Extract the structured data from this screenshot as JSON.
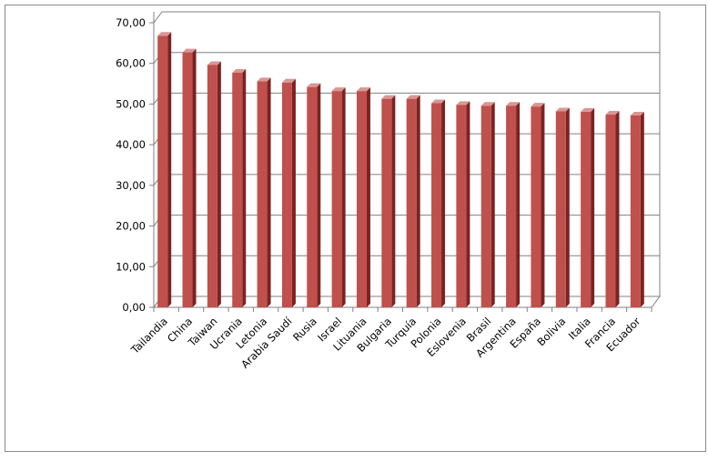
{
  "chart_data": {
    "type": "bar",
    "style": "3d-column",
    "categories": [
      "Tailandia",
      "China",
      "Taiwan",
      "Ucrania",
      "Letonia",
      "Arabia Saudí",
      "Rusia",
      "Israel",
      "Lituania",
      "Bulgaria",
      "Turquía",
      "Polonia",
      "Eslovenia",
      "Brasil",
      "Argentina",
      "España",
      "Bolivia",
      "Italia",
      "Francia",
      "Ecuador"
    ],
    "values": [
      66.8,
      62.7,
      59.6,
      57.7,
      55.6,
      55.3,
      54.2,
      53.2,
      53.2,
      51.3,
      51.3,
      50.2,
      49.8,
      49.6,
      49.6,
      49.4,
      48.2,
      48.1,
      47.4,
      47.2
    ],
    "ylim": [
      0,
      70
    ],
    "yticks": [
      "0,00",
      "10,00",
      "20,00",
      "30,00",
      "40,00",
      "50,00",
      "60,00",
      "70,00"
    ],
    "grid": true,
    "legend": "none",
    "colors": {
      "bar_front": "#c0504d",
      "bar_side": "#7b2322",
      "bar_top": "#d99694",
      "grid": "#808080",
      "axis": "#808080"
    }
  }
}
